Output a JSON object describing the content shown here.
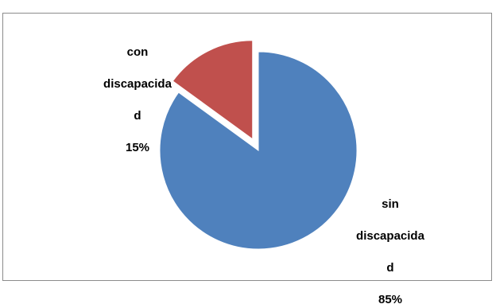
{
  "chart_data": {
    "type": "pie",
    "title": "",
    "slices": [
      {
        "label_lines": [
          "con",
          "discapacida",
          "d"
        ],
        "percent_label": "15%",
        "value": 15,
        "color": "#c0504d",
        "exploded": true
      },
      {
        "label_lines": [
          "sin",
          "discapacida",
          "d"
        ],
        "percent_label": "85%",
        "value": 85,
        "color": "#4f81bd",
        "exploded": false
      }
    ],
    "legend": "none"
  }
}
